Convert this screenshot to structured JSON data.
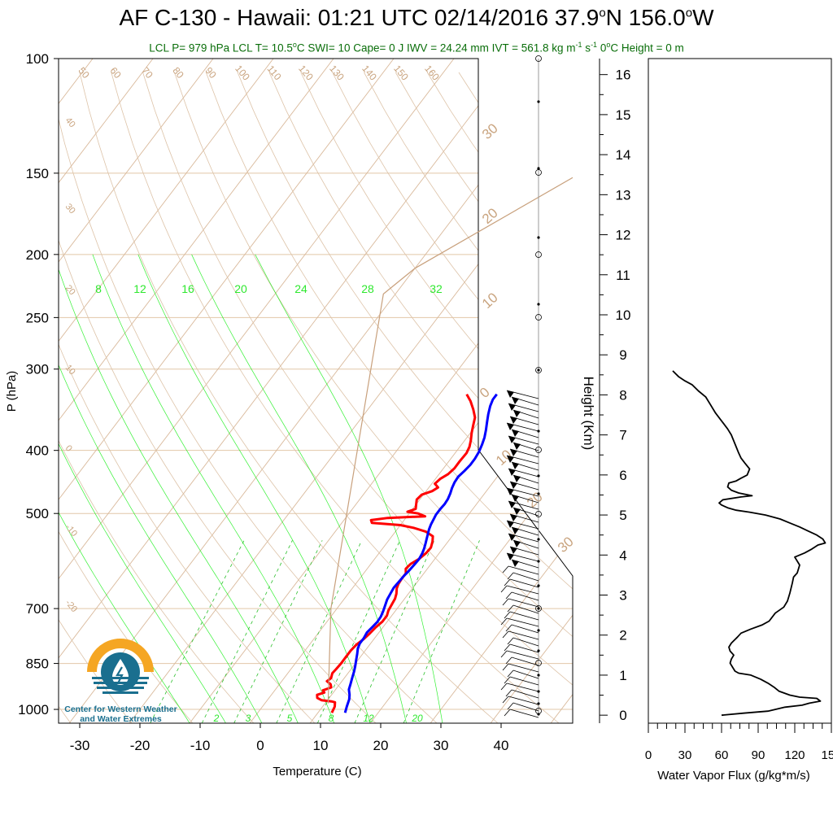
{
  "header": {
    "title_main": "AF C-130 - Hawaii: 01:21 UTC 02/14/2016  37.9",
    "title_deg1": "o",
    "title_lat_dir": "N 156.0",
    "title_deg2": "o",
    "title_lon_dir": "W",
    "sub_part1": "LCL P= 979 hPa  LCL T= 10.5",
    "sub_deg1": "o",
    "sub_part2": "C  SWI= 10  Cape= 0 J  IWV = 24.24 mm  IVT = 561.8 kg m",
    "sub_exp1": "-1",
    "sub_part3": " s",
    "sub_exp2": "-1",
    "sub_part4": "  0",
    "sub_deg2": "o",
    "sub_part5": "C Height = 0 m"
  },
  "logo": {
    "line1": "Center for Western Weather",
    "line2": "and Water Extremes"
  },
  "colors": {
    "temperature": "#ff0000",
    "dewpoint": "#0000ff",
    "isotherm": "#d9b99b",
    "isobar": "#e2c7a8",
    "dry_adiabat": "#ddc3a8",
    "moist_adiabat": "#00ee00",
    "mixing_ratio": "#2bbf2b",
    "parcel": "#c8a07c",
    "mixing_label": "#2ee82e",
    "iso_label": "#c9a47f",
    "logo_orange": "#f5a623",
    "logo_blue": "#1a6f8f"
  },
  "chart_data": [
    {
      "type": "line",
      "name": "skew-t",
      "xlabel": "Temperature (C)",
      "ylabel": "P (hPa)",
      "x_ticks": [
        -30,
        -20,
        -10,
        0,
        10,
        20,
        30,
        40
      ],
      "xlim": [
        -34,
        50
      ],
      "ylim": [
        1050,
        100
      ],
      "y_scale": "log",
      "p_ticks": [
        100,
        150,
        200,
        250,
        300,
        400,
        500,
        700,
        850,
        1000
      ],
      "mixing_ratio_top_labels": [
        "8",
        "12",
        "16",
        "20",
        "24",
        "28",
        "32"
      ],
      "mixing_ratio_bottom_labels": [
        "2",
        "3",
        "5",
        "8",
        "12",
        "20"
      ],
      "dry_adiabat_labels": [
        "50",
        "60",
        "70",
        "80",
        "90",
        "100",
        "110",
        "120",
        "130",
        "140",
        "150",
        "160"
      ],
      "isotherm_labels": [
        "40",
        "30",
        "20",
        "10",
        "0",
        "-10",
        "-20"
      ],
      "isotherm_labels_right": [
        "30",
        "20",
        "10",
        "0",
        "10",
        "20",
        "30"
      ],
      "series": [
        {
          "key": "temperature",
          "points": [
            [
              12.3,
              1012
            ],
            [
              12.0,
              990
            ],
            [
              11.5,
              975
            ],
            [
              10.8,
              972
            ],
            [
              9.0,
              968
            ],
            [
              8.0,
              960
            ],
            [
              7.6,
              950
            ],
            [
              8.5,
              942
            ],
            [
              8.0,
              935
            ],
            [
              9.0,
              925
            ],
            [
              8.5,
              915
            ],
            [
              7.5,
              905
            ],
            [
              7.8,
              895
            ],
            [
              7.4,
              880
            ],
            [
              7.5,
              868
            ],
            [
              7.6,
              850
            ],
            [
              7.6,
              830
            ],
            [
              7.6,
              812
            ],
            [
              7.8,
              795
            ],
            [
              8.3,
              780
            ],
            [
              8.6,
              764
            ],
            [
              8.8,
              748
            ],
            [
              9.2,
              733
            ],
            [
              9.2,
              718
            ],
            [
              8.8,
              705
            ],
            [
              8.6,
              690
            ],
            [
              8.4,
              676
            ],
            [
              8.0,
              664
            ],
            [
              7.4,
              652
            ],
            [
              7.1,
              642
            ],
            [
              7.0,
              630
            ],
            [
              7.0,
              618
            ],
            [
              6.4,
              608
            ],
            [
              6.6,
              598
            ],
            [
              7.4,
              587
            ],
            [
              7.8,
              575
            ],
            [
              7.9,
              564
            ],
            [
              7.4,
              552
            ],
            [
              6.8,
              542
            ],
            [
              5.0,
              533
            ],
            [
              2.5,
              526
            ],
            [
              0.0,
              521
            ],
            [
              -5.0,
              517
            ],
            [
              -5.5,
              512
            ],
            [
              -3.0,
              508
            ],
            [
              3.0,
              505
            ],
            [
              1.5,
              500
            ],
            [
              -0.5,
              497
            ],
            [
              0.5,
              492
            ],
            [
              0.0,
              484
            ],
            [
              -0.5,
              476
            ],
            [
              -0.3,
              468
            ],
            [
              1.0,
              462
            ],
            [
              1.5,
              456
            ],
            [
              0.5,
              450
            ],
            [
              0.8,
              442
            ],
            [
              1.5,
              435
            ],
            [
              1.8,
              426
            ],
            [
              1.8,
              416
            ],
            [
              1.9,
              404
            ],
            [
              1.6,
              395
            ],
            [
              1.0,
              386
            ],
            [
              0.2,
              376
            ],
            [
              -0.5,
              366
            ],
            [
              -1.2,
              356
            ],
            [
              -2.5,
              346
            ],
            [
              -4.0,
              336
            ],
            [
              -5.5,
              328
            ]
          ]
        },
        {
          "key": "dewpoint",
          "points": [
            [
              14.5,
              1012
            ],
            [
              14.0,
              990
            ],
            [
              13.8,
              980
            ],
            [
              13.5,
              965
            ],
            [
              13.0,
              950
            ],
            [
              12.2,
              932
            ],
            [
              11.8,
              915
            ],
            [
              11.3,
              895
            ],
            [
              10.8,
              875
            ],
            [
              10.3,
              858
            ],
            [
              9.7,
              840
            ],
            [
              9.1,
              822
            ],
            [
              8.5,
              806
            ],
            [
              8.2,
              792
            ],
            [
              8.2,
              778
            ],
            [
              8.0,
              762
            ],
            [
              8.2,
              748
            ],
            [
              8.4,
              734
            ],
            [
              8.3,
              720
            ],
            [
              8.0,
              706
            ],
            [
              7.6,
              692
            ],
            [
              7.2,
              678
            ],
            [
              7.0,
              664
            ],
            [
              6.8,
              650
            ],
            [
              6.9,
              637
            ],
            [
              7.0,
              624
            ],
            [
              7.2,
              612
            ],
            [
              7.3,
              600
            ],
            [
              7.4,
              588
            ],
            [
              7.2,
              576
            ],
            [
              6.9,
              566
            ],
            [
              6.5,
              556
            ],
            [
              6.1,
              547
            ],
            [
              5.7,
              538
            ],
            [
              5.3,
              529
            ],
            [
              5.0,
              520
            ],
            [
              4.8,
              511
            ],
            [
              4.6,
              502
            ],
            [
              4.6,
              493
            ],
            [
              4.7,
              484
            ],
            [
              4.6,
              475
            ],
            [
              4.3,
              466
            ],
            [
              3.9,
              457
            ],
            [
              3.6,
              448
            ],
            [
              3.5,
              439
            ],
            [
              3.8,
              430
            ],
            [
              4.0,
              421
            ],
            [
              4.0,
              412
            ],
            [
              3.8,
              402
            ],
            [
              3.4,
              392
            ],
            [
              2.9,
              382
            ],
            [
              2.2,
              372
            ],
            [
              1.4,
              362
            ],
            [
              0.6,
              352
            ],
            [
              -0.1,
              342
            ],
            [
              -0.5,
              334
            ],
            [
              -0.5,
              328
            ]
          ]
        },
        {
          "key": "parcel",
          "points": [
            [
              10.5,
              979
            ],
            [
              -1.0,
              700
            ],
            [
              -32.0,
              230
            ],
            [
              -30.0,
              210
            ],
            [
              -12.0,
              142
            ],
            [
              8.0,
              100
            ]
          ]
        }
      ]
    },
    {
      "type": "line",
      "name": "water-vapor-flux",
      "xlabel": "Water Vapor Flux (g/kg*m/s)",
      "ylabel": "Height (Km)",
      "x_ticks": [
        0,
        30,
        60,
        90,
        120,
        150
      ],
      "xlim": [
        0,
        150
      ],
      "y_ticks": [
        0,
        1,
        2,
        3,
        4,
        5,
        6,
        7,
        8,
        9,
        10,
        11,
        12,
        13,
        14,
        15,
        16
      ],
      "ylim": [
        -0.2,
        16.4
      ],
      "series": [
        {
          "key": "flux",
          "points": [
            [
              60,
              0.0
            ],
            [
              78,
              0.05
            ],
            [
              98,
              0.1
            ],
            [
              112,
              0.2
            ],
            [
              126,
              0.25
            ],
            [
              132,
              0.3
            ],
            [
              141,
              0.35
            ],
            [
              138,
              0.42
            ],
            [
              124,
              0.45
            ],
            [
              116,
              0.5
            ],
            [
              107,
              0.6
            ],
            [
              103,
              0.7
            ],
            [
              98,
              0.8
            ],
            [
              92,
              0.9
            ],
            [
              84,
              1.0
            ],
            [
              74,
              1.05
            ],
            [
              71,
              1.1
            ],
            [
              69,
              1.2
            ],
            [
              67,
              1.3
            ],
            [
              68,
              1.4
            ],
            [
              70,
              1.5
            ],
            [
              67,
              1.6
            ],
            [
              66,
              1.7
            ],
            [
              68,
              1.8
            ],
            [
              73,
              1.95
            ],
            [
              76,
              2.05
            ],
            [
              84,
              2.15
            ],
            [
              93,
              2.25
            ],
            [
              99,
              2.35
            ],
            [
              104,
              2.55
            ],
            [
              111,
              2.7
            ],
            [
              114,
              2.85
            ],
            [
              116,
              3.05
            ],
            [
              118,
              3.3
            ],
            [
              119,
              3.45
            ],
            [
              122,
              3.55
            ],
            [
              124,
              3.75
            ],
            [
              120,
              3.95
            ],
            [
              128,
              4.05
            ],
            [
              134,
              4.15
            ],
            [
              139,
              4.25
            ],
            [
              145,
              4.3
            ],
            [
              143,
              4.4
            ],
            [
              138,
              4.5
            ],
            [
              131,
              4.6
            ],
            [
              124,
              4.7
            ],
            [
              116,
              4.8
            ],
            [
              108,
              4.9
            ],
            [
              96,
              5.0
            ],
            [
              83,
              5.07
            ],
            [
              72,
              5.12
            ],
            [
              65,
              5.18
            ],
            [
              60,
              5.25
            ],
            [
              58,
              5.3
            ],
            [
              61,
              5.38
            ],
            [
              76,
              5.45
            ],
            [
              85,
              5.48
            ],
            [
              74,
              5.55
            ],
            [
              68,
              5.62
            ],
            [
              65,
              5.7
            ],
            [
              66,
              5.8
            ],
            [
              72,
              5.85
            ],
            [
              76,
              5.92
            ],
            [
              81,
              6.0
            ],
            [
              83,
              6.15
            ],
            [
              79,
              6.3
            ],
            [
              76,
              6.42
            ],
            [
              74,
              6.55
            ],
            [
              72,
              6.7
            ],
            [
              70,
              6.85
            ],
            [
              68,
              7.0
            ],
            [
              65,
              7.15
            ],
            [
              60,
              7.35
            ],
            [
              55,
              7.55
            ],
            [
              51,
              7.75
            ],
            [
              47,
              7.95
            ],
            [
              41,
              8.1
            ],
            [
              36,
              8.25
            ],
            [
              30,
              8.35
            ],
            [
              25,
              8.45
            ],
            [
              20,
              8.6
            ]
          ]
        }
      ]
    }
  ]
}
